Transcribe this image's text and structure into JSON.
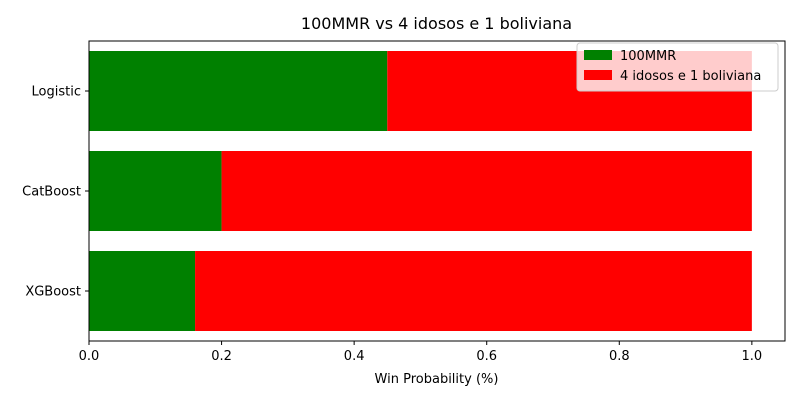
{
  "chart_data": {
    "type": "bar",
    "orientation": "horizontal",
    "stacked": true,
    "title": "100MMR vs 4 idosos e 1 boliviana",
    "xlabel": "Win Probability (%)",
    "ylabel": "",
    "xlim": [
      0,
      1.05
    ],
    "xticks": [
      "0.0",
      "0.2",
      "0.4",
      "0.6",
      "0.8",
      "1.0"
    ],
    "categories": [
      "Logistic",
      "CatBoost",
      "XGBoost"
    ],
    "series": [
      {
        "name": "100MMR",
        "color": "#008000",
        "values": [
          0.45,
          0.2,
          0.16
        ]
      },
      {
        "name": "4 idosos e 1 boliviana",
        "color": "#ff0000",
        "values": [
          0.55,
          0.8,
          0.84
        ]
      }
    ],
    "legend_position": "top-right",
    "grid": false
  }
}
